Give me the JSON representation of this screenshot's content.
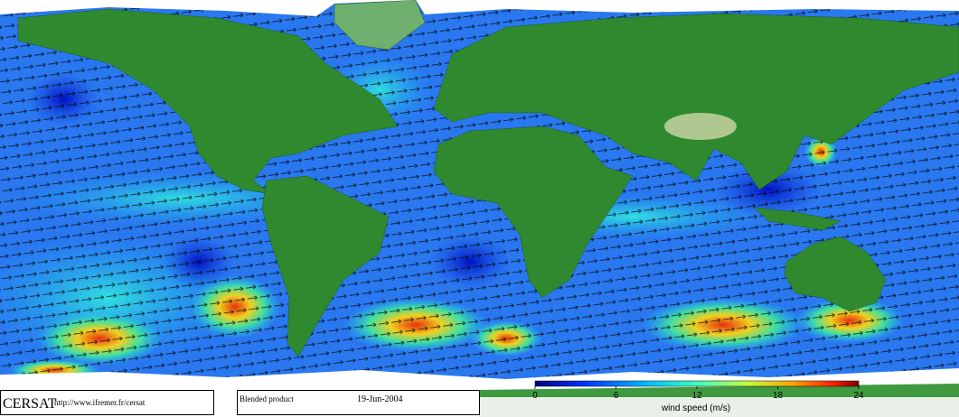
{
  "footer": {
    "source": "CERSAT",
    "url": "http://www.ifremer.fr/cersat",
    "product": "Blended product",
    "date": "19-Jun-2004"
  },
  "colorbar": {
    "label": "wind speed (m/s)",
    "range": [
      0,
      24
    ],
    "ticks": [
      0,
      6,
      12,
      18,
      24
    ]
  }
}
